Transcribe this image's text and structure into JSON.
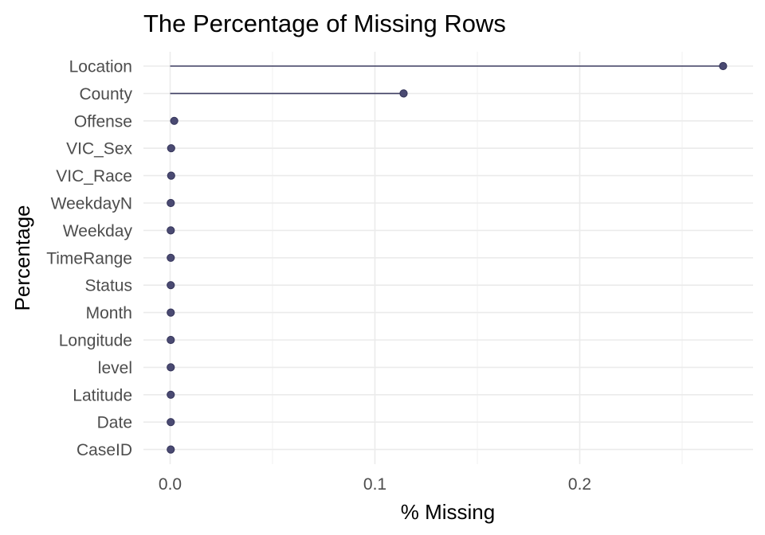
{
  "chart_data": {
    "type": "lollipop",
    "orientation": "horizontal",
    "title": "The Percentage of Missing Rows",
    "xlabel": "% Missing",
    "ylabel": "Percentage",
    "xlim": [
      -0.01,
      0.285
    ],
    "x_ticks": [
      0.0,
      0.1,
      0.2
    ],
    "x_tick_labels": [
      "0.0",
      "0.1",
      "0.2"
    ],
    "x_minor_ticks": [
      0.05,
      0.15,
      0.25
    ],
    "grid": true,
    "series_color": "#4a4a72",
    "categories": [
      "Location",
      "County",
      "Offense",
      "VIC_Sex",
      "VIC_Race",
      "WeekdayN",
      "Weekday",
      "TimeRange",
      "Status",
      "Month",
      "Longitude",
      "level",
      "Latitude",
      "Date",
      "CaseID"
    ],
    "values": [
      0.27,
      0.114,
      0.002,
      0.0005,
      0.0005,
      0.0003,
      0.0003,
      0.0003,
      0.0003,
      0.0003,
      0.0003,
      0.0003,
      0.0003,
      0.0003,
      0.0003
    ]
  }
}
